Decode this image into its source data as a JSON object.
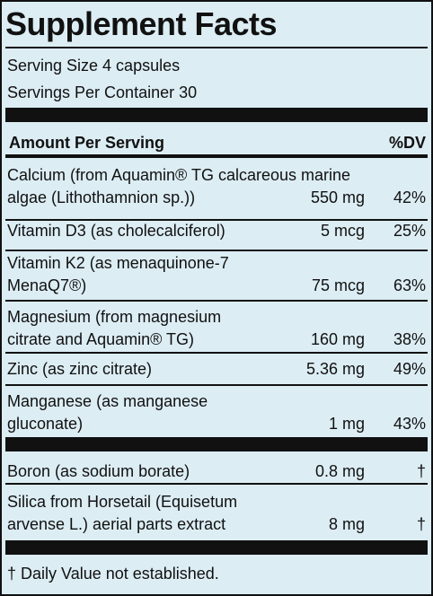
{
  "title": "Supplement Facts",
  "serving_size": "Serving Size 4 capsules",
  "servings_per_container": "Servings Per Container 30",
  "header": {
    "amount": "Amount Per Serving",
    "dv": "%DV"
  },
  "rows": [
    {
      "name_lines": [
        "Calcium (from Aquamin® TG calcareous marine",
        "algae (Lithothamnion sp.))"
      ],
      "amount": "550 mg",
      "dv": "42%"
    },
    {
      "name_lines": [
        "Vitamin D3 (as cholecalciferol)"
      ],
      "amount": "5 mcg",
      "dv": "25%"
    },
    {
      "name_lines": [
        "Vitamin K2 (as menaquinone-7",
        "MenaQ7®)"
      ],
      "amount": "75 mcg",
      "dv": "63%"
    },
    {
      "name_lines": [
        "Magnesium (from magnesium",
        "citrate and Aquamin® TG)"
      ],
      "amount": "160 mg",
      "dv": "38%"
    },
    {
      "name_lines": [
        "Zinc (as zinc citrate)"
      ],
      "amount": "5.36 mg",
      "dv": "49%"
    },
    {
      "name_lines": [
        "Manganese (as manganese",
        "gluconate)"
      ],
      "amount": "1 mg",
      "dv": "43%"
    },
    {
      "name_lines": [
        "Boron (as sodium borate)"
      ],
      "amount": "0.8 mg",
      "dv": "†"
    },
    {
      "name_lines": [
        "Silica from Horsetail (Equisetum",
        "arvense L.) aerial parts extract"
      ],
      "amount": "8 mg",
      "dv": "†"
    }
  ],
  "footnote": "† Daily Value not established."
}
